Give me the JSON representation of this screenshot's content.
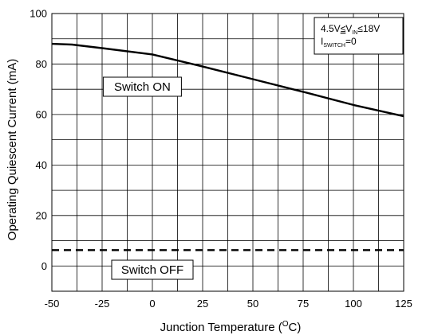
{
  "chart_data": {
    "type": "line",
    "xlabel": "Junction Temperature (",
    "xlabel_unit_sup": "O",
    "xlabel_unit": "C)",
    "ylabel": "Operating Quiescent Current (mA)",
    "xlim": [
      -50,
      125
    ],
    "ylim": [
      -10,
      100
    ],
    "x_ticks": [
      -50,
      -25,
      0,
      25,
      50,
      75,
      100,
      125
    ],
    "y_ticks": [
      0,
      20,
      40,
      60,
      80,
      100
    ],
    "grid": true,
    "series": [
      {
        "name": "Switch ON",
        "style": "solid",
        "x": [
          -50,
          -40,
          -25,
          0,
          25,
          50,
          75,
          100,
          125
        ],
        "y": [
          88,
          87.7,
          86.3,
          83.8,
          79,
          74,
          69,
          63.8,
          59.3
        ]
      },
      {
        "name": "Switch OFF",
        "style": "dashed",
        "x": [
          -50,
          125
        ],
        "y": [
          6.3,
          6.3
        ]
      }
    ],
    "annotations": [
      {
        "text": "Switch ON",
        "x": -5,
        "y": 71
      },
      {
        "text": "Switch OFF",
        "x": 0,
        "y": -1.5
      }
    ],
    "conditions": {
      "line1": {
        "a": "4.5V",
        "le1": "≤",
        "v": "V",
        "v_sub": "IN",
        "le2": "≤",
        "b": "18V"
      },
      "line2": {
        "i": "I",
        "i_sub": "SWITCH",
        "eq": "=0"
      }
    }
  }
}
